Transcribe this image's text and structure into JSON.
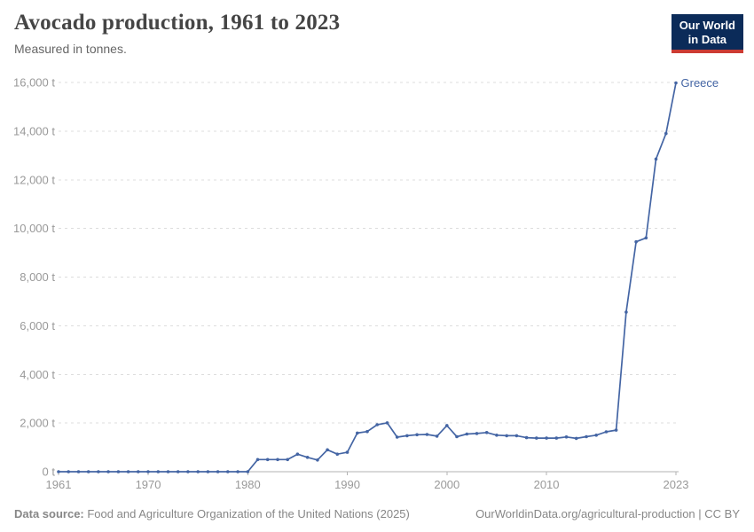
{
  "header": {
    "title": "Avocado production, 1961 to 2023",
    "subtitle": "Measured in tonnes."
  },
  "logo": {
    "line1": "Our World",
    "line2": "in Data"
  },
  "footer": {
    "source_label": "Data source:",
    "source_text": " Food and Agriculture Organization of the United Nations (2025)",
    "link_text": "OurWorldinData.org/agricultural-production | CC BY"
  },
  "colors": {
    "line": "#4465a4",
    "entity_label": "#4465a4",
    "logo_bg": "#0b2b59",
    "logo_accent": "#cc3b33",
    "grid": "#dddddd",
    "axis": "#b3b3b3",
    "tick_text": "#999999"
  },
  "chart_data": {
    "type": "line",
    "title": "Avocado production, 1961 to 2023",
    "subtitle": "Measured in tonnes.",
    "xlabel": "",
    "ylabel": "tonnes",
    "x_range": [
      1961,
      2023
    ],
    "y_range": [
      0,
      16000
    ],
    "grid": "dashed-horizontal-gridlines",
    "legend_position": "end-of-line-label",
    "x_ticks": [
      1961,
      1970,
      1980,
      1990,
      2000,
      2010,
      2023
    ],
    "y_ticks": [
      {
        "value": 0,
        "label": "0 t"
      },
      {
        "value": 2000,
        "label": "2,000 t"
      },
      {
        "value": 4000,
        "label": "4,000 t"
      },
      {
        "value": 6000,
        "label": "6,000 t"
      },
      {
        "value": 8000,
        "label": "8,000 t"
      },
      {
        "value": 10000,
        "label": "10,000 t"
      },
      {
        "value": 12000,
        "label": "12,000 t"
      },
      {
        "value": 14000,
        "label": "14,000 t"
      },
      {
        "value": 16000,
        "label": "16,000 t"
      }
    ],
    "series": [
      {
        "name": "Greece",
        "x": [
          1961,
          1962,
          1963,
          1964,
          1965,
          1966,
          1967,
          1968,
          1969,
          1970,
          1971,
          1972,
          1973,
          1974,
          1975,
          1976,
          1977,
          1978,
          1979,
          1980,
          1981,
          1982,
          1983,
          1984,
          1985,
          1986,
          1987,
          1988,
          1989,
          1990,
          1991,
          1992,
          1993,
          1994,
          1995,
          1996,
          1997,
          1998,
          1999,
          2000,
          2001,
          2002,
          2003,
          2004,
          2005,
          2006,
          2007,
          2008,
          2009,
          2010,
          2011,
          2012,
          2013,
          2014,
          2015,
          2016,
          2017,
          2018,
          2019,
          2020,
          2021,
          2022,
          2023
        ],
        "values": [
          0,
          0,
          0,
          0,
          0,
          0,
          0,
          0,
          0,
          0,
          0,
          0,
          0,
          0,
          0,
          0,
          0,
          0,
          0,
          0,
          500,
          500,
          500,
          500,
          720,
          590,
          480,
          900,
          720,
          800,
          1590,
          1650,
          1930,
          2010,
          1420,
          1480,
          1520,
          1530,
          1460,
          1900,
          1440,
          1550,
          1570,
          1610,
          1500,
          1480,
          1480,
          1400,
          1380,
          1380,
          1380,
          1430,
          1370,
          1440,
          1500,
          1640,
          1710,
          6560,
          9450,
          9610,
          12850,
          13900,
          15980
        ]
      }
    ]
  }
}
